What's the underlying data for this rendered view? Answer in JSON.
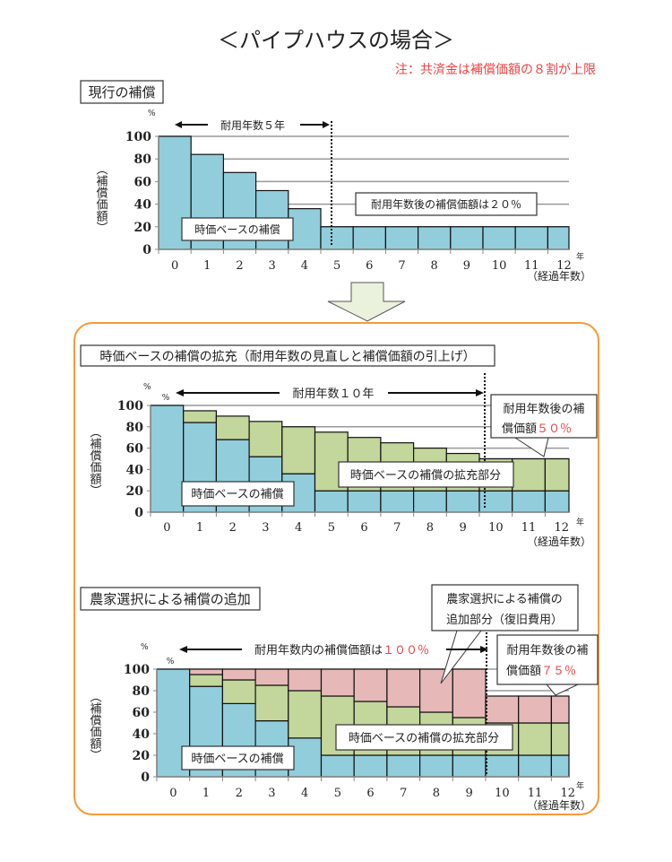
{
  "title": "＜パイプハウスの場合＞",
  "note": "注：共済金は補償価額の８割が上限",
  "colors": {
    "base": "#92cddc",
    "extension": "#c3d69b",
    "additional": "#e6b9b8",
    "frame": "#f39a3c"
  },
  "common": {
    "percent": "%",
    "year_unit": "年",
    "xlabel": "（経過年数）",
    "ylabel": "（補償価額）",
    "base_label": "時価ベースの補償",
    "extension_label": "時価ベースの補償の拡充部分"
  },
  "section1": {
    "heading": "現行の補償",
    "span_label": "耐用年数５年",
    "callout": "耐用年数後の補償価額は２０％"
  },
  "section2": {
    "heading": "時価ベースの補償の拡充（耐用年数の見直しと補償価額の引上げ）",
    "span_label": "耐用年数１０年",
    "callout_line1": "耐用年数後の補",
    "callout_line2": "償価額",
    "callout_value": "５０％"
  },
  "section3": {
    "heading": "農家選択による補償の追加",
    "span_label": "耐用年数内の補償価額は",
    "span_value": "１００％",
    "callout_add_line1": "農家選択による補償の",
    "callout_add_line2": "追加部分（復旧費用）",
    "callout_line1": "耐用年数後の補",
    "callout_line2": "償価額",
    "callout_value": "７５％"
  },
  "chart_data": [
    {
      "type": "bar",
      "title": "現行の補償",
      "categories": [
        "0",
        "1",
        "2",
        "3",
        "4",
        "5",
        "6",
        "7",
        "8",
        "9",
        "10",
        "11",
        "12"
      ],
      "series": [
        {
          "name": "時価ベースの補償",
          "values": [
            100,
            84,
            68,
            52,
            36,
            20,
            20,
            20,
            20,
            20,
            20,
            20,
            20
          ]
        }
      ],
      "xlabel": "（経過年数）",
      "ylabel": "（補償価額）",
      "ylim": [
        0,
        100
      ],
      "yticks": [
        "0",
        "20",
        "40",
        "60",
        "80",
        "100"
      ],
      "service_life_years": 5
    },
    {
      "type": "bar",
      "stacked": true,
      "title": "時価ベースの補償の拡充",
      "categories": [
        "0",
        "1",
        "2",
        "3",
        "4",
        "5",
        "6",
        "7",
        "8",
        "9",
        "10",
        "11",
        "12"
      ],
      "series": [
        {
          "name": "時価ベースの補償",
          "values": [
            100,
            84,
            68,
            52,
            36,
            20,
            20,
            20,
            20,
            20,
            20,
            20,
            20
          ]
        },
        {
          "name": "時価ベースの補償の拡充部分",
          "values": [
            0,
            11,
            22,
            33,
            44,
            55,
            50,
            45,
            40,
            35,
            30,
            30,
            30
          ]
        }
      ],
      "xlabel": "（経過年数）",
      "ylabel": "（補償価額）",
      "ylim": [
        0,
        100
      ],
      "yticks": [
        "0",
        "20",
        "40",
        "60",
        "80",
        "100"
      ],
      "service_life_years": 10
    },
    {
      "type": "bar",
      "stacked": true,
      "title": "農家選択による補償の追加",
      "categories": [
        "0",
        "1",
        "2",
        "3",
        "4",
        "5",
        "6",
        "7",
        "8",
        "9",
        "10",
        "11",
        "12"
      ],
      "series": [
        {
          "name": "時価ベースの補償",
          "values": [
            100,
            84,
            68,
            52,
            36,
            20,
            20,
            20,
            20,
            20,
            20,
            20,
            20
          ]
        },
        {
          "name": "時価ベースの補償の拡充部分",
          "values": [
            0,
            11,
            22,
            33,
            44,
            55,
            50,
            45,
            40,
            35,
            30,
            30,
            30
          ]
        },
        {
          "name": "農家選択による補償の追加部分（復旧費用）",
          "values": [
            0,
            5,
            10,
            15,
            20,
            25,
            30,
            35,
            40,
            45,
            25,
            25,
            25
          ]
        }
      ],
      "xlabel": "（経過年数）",
      "ylabel": "（補償価額）",
      "ylim": [
        0,
        100
      ],
      "yticks": [
        "0",
        "20",
        "40",
        "60",
        "80",
        "100"
      ],
      "service_life_years": 10
    }
  ]
}
